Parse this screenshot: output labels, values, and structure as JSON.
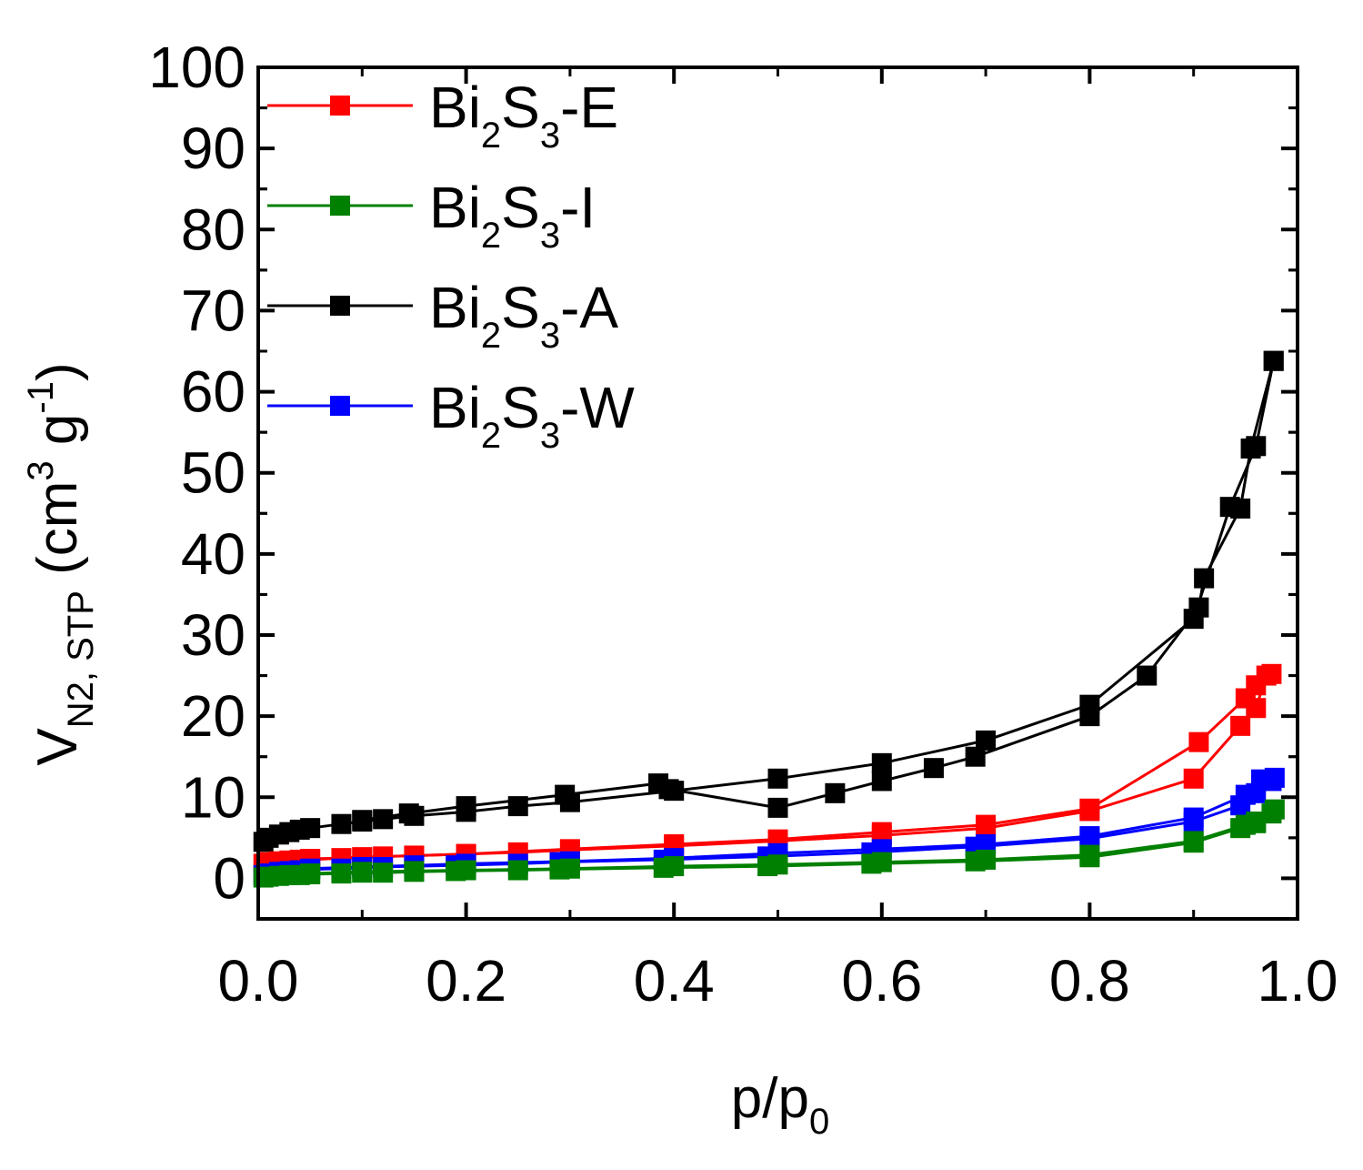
{
  "chart_data": {
    "type": "line",
    "xlabel": {
      "main": "p/p",
      "sub": "0"
    },
    "ylabel": {
      "main": "V",
      "sub": "N2, STP",
      "rest1": " (cm",
      "sup1": "3",
      "rest2": " g",
      "sup2": "-1",
      "rest3": ")"
    },
    "xlim": [
      0.0,
      1.0
    ],
    "ylim": [
      -5,
      100
    ],
    "xticks": [
      "0.0",
      "0.2",
      "0.4",
      "0.6",
      "0.8",
      "1.0"
    ],
    "xtick_values": [
      0.0,
      0.2,
      0.4,
      0.6,
      0.8,
      1.0
    ],
    "yticks": [
      "0",
      "10",
      "20",
      "30",
      "40",
      "50",
      "60",
      "70",
      "80",
      "90",
      "100"
    ],
    "ytick_values": [
      0,
      10,
      20,
      30,
      40,
      50,
      60,
      70,
      80,
      90,
      100
    ],
    "legend_position": "top-left",
    "series": [
      {
        "name": "Bi2S3-E",
        "legend": {
          "pre": "Bi",
          "s1": "2",
          "mid": "S",
          "s2": "3",
          "post": "-E"
        },
        "color": "#ff0000",
        "adsorption": [
          [
            0.005,
            1.8
          ],
          [
            0.01,
            2.0
          ],
          [
            0.02,
            2.1
          ],
          [
            0.03,
            2.2
          ],
          [
            0.04,
            2.3
          ],
          [
            0.05,
            2.4
          ],
          [
            0.08,
            2.5
          ],
          [
            0.1,
            2.6
          ],
          [
            0.12,
            2.7
          ],
          [
            0.15,
            2.8
          ],
          [
            0.2,
            3.0
          ],
          [
            0.25,
            3.2
          ],
          [
            0.3,
            3.5
          ],
          [
            0.4,
            4.0
          ],
          [
            0.5,
            4.6
          ],
          [
            0.6,
            5.3
          ],
          [
            0.7,
            6.2
          ],
          [
            0.8,
            8.3
          ],
          [
            0.9,
            12.3
          ],
          [
            0.945,
            18.8
          ],
          [
            0.96,
            21.0
          ],
          [
            0.97,
            25.0
          ]
        ],
        "desorption": [
          [
            0.975,
            25.2
          ],
          [
            0.96,
            23.8
          ],
          [
            0.95,
            22.2
          ],
          [
            0.905,
            16.8
          ],
          [
            0.8,
            8.6
          ],
          [
            0.7,
            6.6
          ],
          [
            0.6,
            5.7
          ],
          [
            0.5,
            4.8
          ],
          [
            0.4,
            4.2
          ],
          [
            0.3,
            3.6
          ],
          [
            0.2,
            3.0
          ],
          [
            0.15,
            2.8
          ],
          [
            0.1,
            2.6
          ],
          [
            0.05,
            2.3
          ]
        ]
      },
      {
        "name": "Bi2S3-I",
        "legend": {
          "pre": "Bi",
          "s1": "2",
          "mid": "S",
          "s2": "3",
          "post": "-I"
        },
        "color": "#008000",
        "adsorption": [
          [
            0.005,
            0.1
          ],
          [
            0.01,
            0.2
          ],
          [
            0.02,
            0.3
          ],
          [
            0.03,
            0.4
          ],
          [
            0.04,
            0.4
          ],
          [
            0.05,
            0.5
          ],
          [
            0.08,
            0.6
          ],
          [
            0.1,
            0.7
          ],
          [
            0.12,
            0.7
          ],
          [
            0.15,
            0.8
          ],
          [
            0.19,
            0.9
          ],
          [
            0.25,
            1.0
          ],
          [
            0.29,
            1.1
          ],
          [
            0.39,
            1.3
          ],
          [
            0.49,
            1.5
          ],
          [
            0.59,
            1.8
          ],
          [
            0.69,
            2.1
          ],
          [
            0.8,
            2.6
          ],
          [
            0.9,
            4.4
          ],
          [
            0.945,
            6.2
          ],
          [
            0.96,
            6.8
          ],
          [
            0.975,
            8.0
          ]
        ],
        "desorption": [
          [
            0.978,
            8.5
          ],
          [
            0.96,
            7.0
          ],
          [
            0.95,
            6.6
          ],
          [
            0.9,
            4.6
          ],
          [
            0.8,
            2.9
          ],
          [
            0.7,
            2.3
          ],
          [
            0.6,
            2.0
          ],
          [
            0.5,
            1.7
          ],
          [
            0.4,
            1.5
          ],
          [
            0.3,
            1.2
          ],
          [
            0.2,
            1.0
          ],
          [
            0.15,
            0.9
          ],
          [
            0.1,
            0.8
          ],
          [
            0.05,
            0.6
          ]
        ]
      },
      {
        "name": "Bi2S3-A",
        "legend": {
          "pre": "Bi",
          "s1": "2",
          "mid": "S",
          "s2": "3",
          "post": "-A"
        },
        "color": "#000000",
        "adsorption": [
          [
            0.005,
            4.5
          ],
          [
            0.01,
            5.0
          ],
          [
            0.02,
            5.4
          ],
          [
            0.03,
            5.7
          ],
          [
            0.04,
            6.0
          ],
          [
            0.05,
            6.2
          ],
          [
            0.08,
            6.7
          ],
          [
            0.1,
            7.0
          ],
          [
            0.12,
            7.3
          ],
          [
            0.15,
            7.7
          ],
          [
            0.2,
            8.2
          ],
          [
            0.25,
            8.9
          ],
          [
            0.3,
            9.4
          ],
          [
            0.4,
            10.8
          ],
          [
            0.5,
            12.3
          ],
          [
            0.6,
            14.2
          ],
          [
            0.7,
            17.0
          ],
          [
            0.8,
            21.4
          ],
          [
            0.9,
            32.0
          ],
          [
            0.935,
            45.8
          ],
          [
            0.96,
            53.3
          ],
          [
            0.977,
            63.8
          ]
        ],
        "desorption": [
          [
            0.977,
            63.8
          ],
          [
            0.955,
            53.0
          ],
          [
            0.945,
            45.6
          ],
          [
            0.91,
            37.0
          ],
          [
            0.905,
            33.4
          ],
          [
            0.855,
            25.0
          ],
          [
            0.8,
            20.0
          ],
          [
            0.69,
            15.0
          ],
          [
            0.65,
            13.6
          ],
          [
            0.6,
            12.0
          ],
          [
            0.555,
            10.5
          ],
          [
            0.5,
            8.7
          ],
          [
            0.395,
            11.0
          ],
          [
            0.385,
            11.7
          ],
          [
            0.295,
            10.3
          ],
          [
            0.2,
            8.9
          ],
          [
            0.145,
            8.0
          ],
          [
            0.1,
            7.2
          ]
        ]
      },
      {
        "name": "Bi2S3-W",
        "legend": {
          "pre": "Bi",
          "s1": "2",
          "mid": "S",
          "s2": "3",
          "post": "-W"
        },
        "color": "#0000ff",
        "adsorption": [
          [
            0.005,
            0.4
          ],
          [
            0.01,
            0.6
          ],
          [
            0.02,
            0.8
          ],
          [
            0.03,
            0.9
          ],
          [
            0.04,
            1.0
          ],
          [
            0.05,
            1.1
          ],
          [
            0.08,
            1.2
          ],
          [
            0.1,
            1.3
          ],
          [
            0.12,
            1.4
          ],
          [
            0.15,
            1.5
          ],
          [
            0.19,
            1.6
          ],
          [
            0.25,
            1.8
          ],
          [
            0.29,
            2.0
          ],
          [
            0.39,
            2.3
          ],
          [
            0.49,
            2.7
          ],
          [
            0.59,
            3.2
          ],
          [
            0.69,
            3.9
          ],
          [
            0.8,
            4.9
          ],
          [
            0.9,
            7.0
          ],
          [
            0.945,
            9.0
          ],
          [
            0.96,
            10.5
          ],
          [
            0.975,
            12.0
          ]
        ],
        "desorption": [
          [
            0.978,
            12.4
          ],
          [
            0.965,
            12.2
          ],
          [
            0.95,
            10.3
          ],
          [
            0.9,
            7.5
          ],
          [
            0.8,
            5.2
          ],
          [
            0.7,
            4.2
          ],
          [
            0.6,
            3.6
          ],
          [
            0.5,
            3.1
          ],
          [
            0.4,
            2.5
          ],
          [
            0.3,
            2.1
          ],
          [
            0.2,
            1.8
          ],
          [
            0.15,
            1.6
          ],
          [
            0.1,
            1.4
          ],
          [
            0.05,
            1.2
          ]
        ]
      }
    ]
  }
}
